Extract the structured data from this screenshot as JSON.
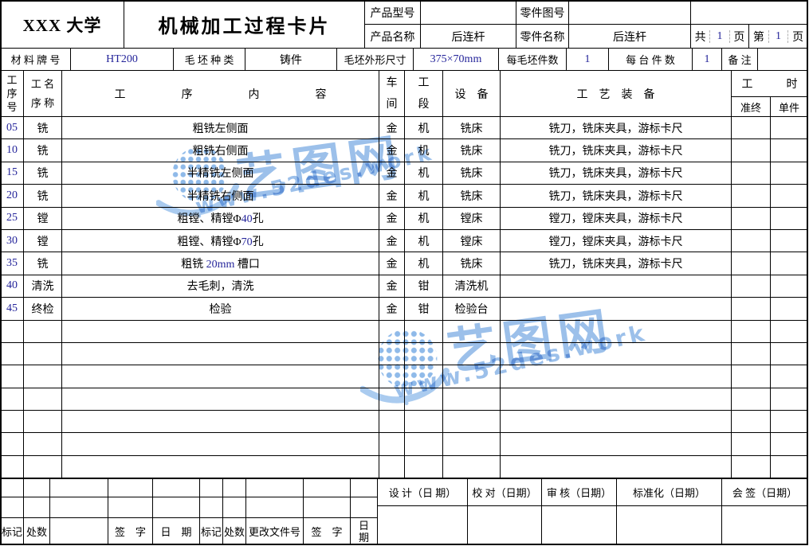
{
  "header": {
    "university": "XXX 大学",
    "title": "机械加工过程卡片",
    "product_model": {
      "label": "产品型号",
      "value": ""
    },
    "part_drawing_no": {
      "label": "零件图号",
      "value": ""
    },
    "product_name": {
      "label": "产品名称",
      "value": "后连杆"
    },
    "part_name": {
      "label": "零件名称",
      "value": "后连杆"
    },
    "pages": {
      "total_label": "共",
      "total_value": "1",
      "total_unit": "页",
      "current_label": "第",
      "current_value": "1",
      "current_unit": "页"
    }
  },
  "material_row": {
    "material_label": "材 料 牌 号",
    "material_value": "HT200",
    "blank_type_label": "毛 坯 种 类",
    "blank_type_value": "铸件",
    "blank_size_label": "毛坯外形尺寸",
    "blank_size_value": "375×70mm",
    "per_blank_label": "每毛坯件数",
    "per_blank_value": "1",
    "per_machine_label": "每 台 件 数",
    "per_machine_value": "1",
    "remark_label": "备 注",
    "remark_value": ""
  },
  "process_header": {
    "no": "工\n序\n号",
    "name": "工 名\n序 称",
    "content": "工　　　　　序　　　　　内　　　　　容",
    "workshop": "车\n间",
    "section": "工\n段",
    "equipment": "设　备",
    "tooling": "工　艺　装　备",
    "hours": "工　　　时",
    "prep": "准终",
    "unit": "单件"
  },
  "rows": [
    {
      "no": "05",
      "name": "铣",
      "content": "粗铣左侧面",
      "workshop": "金",
      "section": "机",
      "equipment": "铣床",
      "tooling": "铣刀，铣床夹具，游标卡尺",
      "prep": "",
      "unit": ""
    },
    {
      "no": "10",
      "name": "铣",
      "content": "粗铣右侧面",
      "workshop": "金",
      "section": "机",
      "equipment": "铣床",
      "tooling": "铣刀，铣床夹具，游标卡尺",
      "prep": "",
      "unit": ""
    },
    {
      "no": "15",
      "name": "铣",
      "content": "半精铣左侧面",
      "workshop": "金",
      "section": "机",
      "equipment": "铣床",
      "tooling": "铣刀，铣床夹具，游标卡尺",
      "prep": "",
      "unit": ""
    },
    {
      "no": "20",
      "name": "铣",
      "content": "半精铣右侧面",
      "workshop": "金",
      "section": "机",
      "equipment": "铣床",
      "tooling": "铣刀，铣床夹具，游标卡尺",
      "prep": "",
      "unit": ""
    },
    {
      "no": "25",
      "name": "镗",
      "content": "粗镗、精镗Φ40孔",
      "workshop": "金",
      "section": "机",
      "equipment": "镗床",
      "tooling": "镗刀，镗床夹具，游标卡尺",
      "prep": "",
      "unit": ""
    },
    {
      "no": "30",
      "name": "镗",
      "content": "粗镗、精镗Φ70孔",
      "workshop": "金",
      "section": "机",
      "equipment": "镗床",
      "tooling": "镗刀，镗床夹具，游标卡尺",
      "prep": "",
      "unit": ""
    },
    {
      "no": "35",
      "name": "铣",
      "content": "粗铣 20mm 槽口",
      "workshop": "金",
      "section": "机",
      "equipment": "铣床",
      "tooling": "铣刀，铣床夹具，游标卡尺",
      "prep": "",
      "unit": ""
    },
    {
      "no": "40",
      "name": "清洗",
      "content": "去毛刺，清洗",
      "workshop": "金",
      "section": "钳",
      "equipment": "清洗机",
      "tooling": "",
      "prep": "",
      "unit": ""
    },
    {
      "no": "45",
      "name": "终检",
      "content": "检验",
      "workshop": "金",
      "section": "钳",
      "equipment": "检验台",
      "tooling": "",
      "prep": "",
      "unit": ""
    }
  ],
  "footer": {
    "left_labels": [
      "标记",
      "处数",
      "",
      "签　字",
      "日　期",
      "标记",
      "处数",
      "更改文件号",
      "签　字",
      "日\n期"
    ],
    "right_labels": [
      "设 计（日 期）",
      "校 对（日期）",
      "审 核（日期）",
      "标准化（日期）",
      "会 签（日期）"
    ]
  },
  "watermark": {
    "brand": "艺图网",
    "url": "www.52des.work",
    "color": "#9cc0ea"
  }
}
